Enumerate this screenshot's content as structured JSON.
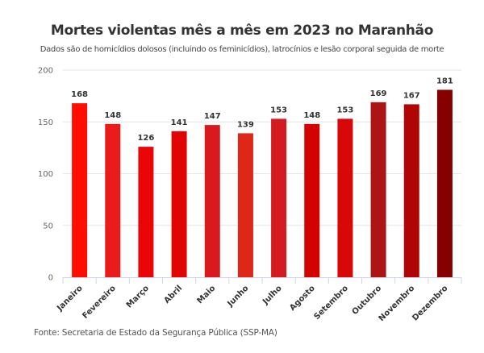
{
  "chart_data": {
    "type": "bar",
    "title": "Mortes violentas mês a mês em 2023 no Maranhão",
    "subtitle": "Dados são de homicídios dolosos (incluindo os feminicídios), latrocínios e lesão corporal seguida de morte",
    "source": "Fonte: Secretaria de Estado da Segurança Pública (SSP-MA)",
    "xlabel": "",
    "ylabel": "",
    "categories": [
      "Janeiro",
      "Fevereiro",
      "Março",
      "Abril",
      "Maio",
      "Junho",
      "Julho",
      "Agosto",
      "Setembro",
      "Outubro",
      "Novembro",
      "Dezembro"
    ],
    "values": [
      168,
      148,
      126,
      141,
      147,
      139,
      153,
      148,
      153,
      169,
      167,
      181
    ],
    "colors": [
      "#ff0d00",
      "#ec1b1b",
      "#ea0506",
      "#e00404",
      "#d81a1e",
      "#de2719",
      "#d31b20",
      "#d40101",
      "#d80809",
      "#ad1416",
      "#b00505",
      "#870000"
    ],
    "ylim": [
      0,
      200
    ],
    "yticks": [
      0,
      50,
      100,
      150,
      200
    ],
    "grid": true,
    "legend": "none"
  }
}
